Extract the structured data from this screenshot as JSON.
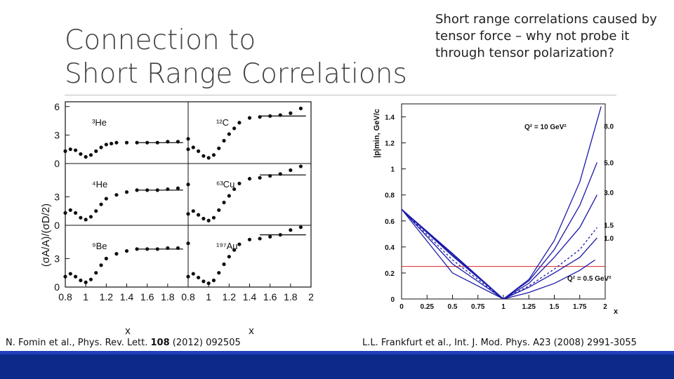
{
  "slide": {
    "title_line1": "Connection to",
    "title_line2": "Short Range Correlations",
    "side_text": "Short range correlations caused by tensor force – why not probe it through tensor polarization?",
    "citation_left": {
      "authors": "N. Fomin et al., Phys. Rev. Lett. ",
      "volume": "108",
      "rest": " (2012) 092505"
    },
    "citation_right": "L.L. Frankfurt et al., Int. J. Mod. Phys. A23 (2008) 2991-3055",
    "colors": {
      "footer": "#0b2a8a",
      "title": "#404040"
    }
  },
  "chart_data": [
    {
      "type": "scatter",
      "ylabel": "(σA/A)/(σD/2)",
      "xlabel": "x",
      "xticks": [
        "0.8",
        "1",
        "1.2",
        "1.4",
        "1.6",
        "1.8",
        "2"
      ],
      "xlim": [
        0.8,
        2.0
      ],
      "ylim": [
        0,
        6.5
      ],
      "yticks": [
        "0",
        "3",
        "6"
      ],
      "grid": false,
      "panels": [
        {
          "label": "³He",
          "col": 0,
          "row": 0,
          "points": [
            [
              0.8,
              1.3
            ],
            [
              0.85,
              1.5
            ],
            [
              0.9,
              1.4
            ],
            [
              0.95,
              1.0
            ],
            [
              1.0,
              0.7
            ],
            [
              1.05,
              0.9
            ],
            [
              1.1,
              1.3
            ],
            [
              1.15,
              1.7
            ],
            [
              1.2,
              2.0
            ],
            [
              1.25,
              2.1
            ],
            [
              1.3,
              2.2
            ],
            [
              1.4,
              2.2
            ],
            [
              1.5,
              2.2
            ],
            [
              1.6,
              2.2
            ],
            [
              1.7,
              2.2
            ],
            [
              1.8,
              2.3
            ],
            [
              1.9,
              2.3
            ],
            [
              2.0,
              2.6
            ]
          ],
          "plateau": {
            "x": [
              1.5,
              1.95
            ],
            "y": 2.2
          }
        },
        {
          "label": "⁴He",
          "col": 0,
          "row": 1,
          "points": [
            [
              0.8,
              1.3
            ],
            [
              0.85,
              1.6
            ],
            [
              0.9,
              1.3
            ],
            [
              0.95,
              0.8
            ],
            [
              1.0,
              0.6
            ],
            [
              1.05,
              0.9
            ],
            [
              1.1,
              1.5
            ],
            [
              1.15,
              2.2
            ],
            [
              1.2,
              2.8
            ],
            [
              1.3,
              3.2
            ],
            [
              1.4,
              3.5
            ],
            [
              1.5,
              3.7
            ],
            [
              1.6,
              3.7
            ],
            [
              1.7,
              3.7
            ],
            [
              1.8,
              3.8
            ],
            [
              1.9,
              3.9
            ],
            [
              2.0,
              4.3
            ]
          ],
          "plateau": {
            "x": [
              1.5,
              1.95
            ],
            "y": 3.7
          }
        },
        {
          "label": "⁹Be",
          "col": 0,
          "row": 2,
          "points": [
            [
              0.8,
              1.1
            ],
            [
              0.85,
              1.4
            ],
            [
              0.9,
              1.1
            ],
            [
              0.95,
              0.7
            ],
            [
              1.0,
              0.5
            ],
            [
              1.05,
              0.8
            ],
            [
              1.1,
              1.5
            ],
            [
              1.15,
              2.3
            ],
            [
              1.2,
              3.0
            ],
            [
              1.3,
              3.5
            ],
            [
              1.4,
              3.8
            ],
            [
              1.5,
              4.0
            ],
            [
              1.6,
              4.0
            ],
            [
              1.7,
              4.0
            ],
            [
              1.8,
              4.1
            ],
            [
              1.9,
              4.1
            ],
            [
              2.0,
              4.6
            ]
          ],
          "plateau": {
            "x": [
              1.5,
              1.95
            ],
            "y": 4.0
          }
        },
        {
          "label": "¹²C",
          "col": 1,
          "row": 0,
          "points": [
            [
              0.8,
              1.5
            ],
            [
              0.85,
              1.7
            ],
            [
              0.9,
              1.3
            ],
            [
              0.95,
              0.8
            ],
            [
              1.0,
              0.6
            ],
            [
              1.05,
              0.9
            ],
            [
              1.1,
              1.6
            ],
            [
              1.15,
              2.4
            ],
            [
              1.2,
              3.1
            ],
            [
              1.25,
              3.7
            ],
            [
              1.3,
              4.3
            ],
            [
              1.4,
              4.8
            ],
            [
              1.5,
              4.9
            ],
            [
              1.6,
              5.0
            ],
            [
              1.7,
              5.1
            ],
            [
              1.8,
              5.3
            ],
            [
              1.9,
              5.8
            ]
          ],
          "plateau": {
            "x": [
              1.5,
              1.95
            ],
            "y": 5.0
          }
        },
        {
          "label": "⁶³Cu",
          "col": 1,
          "row": 1,
          "points": [
            [
              0.8,
              1.2
            ],
            [
              0.85,
              1.5
            ],
            [
              0.9,
              1.1
            ],
            [
              0.95,
              0.7
            ],
            [
              1.0,
              0.5
            ],
            [
              1.05,
              0.8
            ],
            [
              1.1,
              1.6
            ],
            [
              1.15,
              2.4
            ],
            [
              1.2,
              3.1
            ],
            [
              1.25,
              3.8
            ],
            [
              1.3,
              4.4
            ],
            [
              1.4,
              4.9
            ],
            [
              1.5,
              5.0
            ],
            [
              1.6,
              5.2
            ],
            [
              1.7,
              5.4
            ],
            [
              1.8,
              5.8
            ],
            [
              1.9,
              6.2
            ]
          ],
          "plateau": {
            "x": [
              1.5,
              1.95
            ],
            "y": 5.3
          }
        },
        {
          "label": "¹⁹⁷Au",
          "col": 1,
          "row": 2,
          "points": [
            [
              0.8,
              1.1
            ],
            [
              0.85,
              1.4
            ],
            [
              0.9,
              1.0
            ],
            [
              0.95,
              0.6
            ],
            [
              1.0,
              0.4
            ],
            [
              1.05,
              0.7
            ],
            [
              1.1,
              1.5
            ],
            [
              1.15,
              2.4
            ],
            [
              1.2,
              3.2
            ],
            [
              1.25,
              3.9
            ],
            [
              1.3,
              4.5
            ],
            [
              1.4,
              5.0
            ],
            [
              1.5,
              5.1
            ],
            [
              1.6,
              5.3
            ],
            [
              1.7,
              5.5
            ],
            [
              1.8,
              6.0
            ],
            [
              1.9,
              6.3
            ]
          ],
          "plateau": {
            "x": [
              1.5,
              1.95
            ],
            "y": 5.5
          }
        }
      ]
    },
    {
      "type": "line",
      "xlabel": "x",
      "ylabel": "|p|min, GeV/c",
      "xlim": [
        0,
        2
      ],
      "ylim": [
        0,
        1.5
      ],
      "xticks": [
        "0",
        "0.25",
        "0.5",
        "0.75",
        "1",
        "1.25",
        "1.5",
        "1.75",
        "2"
      ],
      "yticks": [
        "0",
        "0.2",
        "0.4",
        "0.6",
        "0.8",
        "1",
        "1.2",
        "1.4"
      ],
      "annotation_top": "Q² = 10 GeV²",
      "annotation_bottom": "Q² = 0.5 GeV²",
      "series": [
        {
          "name": "8.0",
          "dashed": false,
          "left": [
            [
              0,
              0.69
            ],
            [
              0.5,
              0.33
            ],
            [
              1,
              0.0
            ]
          ],
          "right": [
            [
              1,
              0.0
            ],
            [
              1.25,
              0.15
            ],
            [
              1.5,
              0.45
            ],
            [
              1.75,
              0.9
            ],
            [
              1.96,
              1.48
            ]
          ]
        },
        {
          "name": "5.0",
          "dashed": false,
          "left": [
            [
              0,
              0.69
            ],
            [
              0.5,
              0.34
            ],
            [
              1,
              0.0
            ]
          ],
          "right": [
            [
              1,
              0.0
            ],
            [
              1.25,
              0.14
            ],
            [
              1.5,
              0.38
            ],
            [
              1.75,
              0.72
            ],
            [
              1.92,
              1.05
            ]
          ]
        },
        {
          "name": "3.0",
          "dashed": false,
          "left": [
            [
              0,
              0.69
            ],
            [
              0.5,
              0.35
            ],
            [
              1,
              0.0
            ]
          ],
          "right": [
            [
              1,
              0.0
            ],
            [
              1.25,
              0.12
            ],
            [
              1.5,
              0.32
            ],
            [
              1.75,
              0.55
            ],
            [
              1.92,
              0.8
            ]
          ]
        },
        {
          "name": "1.5",
          "dashed": true,
          "left": [
            [
              0,
              0.69
            ],
            [
              0.5,
              0.3
            ],
            [
              1,
              0.0
            ]
          ],
          "right": [
            [
              1,
              0.0
            ],
            [
              1.25,
              0.1
            ],
            [
              1.5,
              0.23
            ],
            [
              1.75,
              0.38
            ],
            [
              1.92,
              0.55
            ]
          ]
        },
        {
          "name": "1.0",
          "dashed": false,
          "left": [
            [
              0,
              0.69
            ],
            [
              0.5,
              0.27
            ],
            [
              1,
              0.0
            ]
          ],
          "right": [
            [
              1,
              0.0
            ],
            [
              1.25,
              0.09
            ],
            [
              1.5,
              0.2
            ],
            [
              1.75,
              0.32
            ],
            [
              1.92,
              0.47
            ]
          ]
        },
        {
          "name": "0.5",
          "dashed": false,
          "left": [
            [
              0,
              0.69
            ],
            [
              0.5,
              0.2
            ],
            [
              1,
              0.0
            ]
          ],
          "right": [
            [
              1,
              0.0
            ],
            [
              1.25,
              0.05
            ],
            [
              1.5,
              0.12
            ],
            [
              1.75,
              0.22
            ],
            [
              1.9,
              0.3
            ]
          ]
        }
      ],
      "hline": {
        "y": 0.25,
        "color": "#d22"
      }
    }
  ]
}
